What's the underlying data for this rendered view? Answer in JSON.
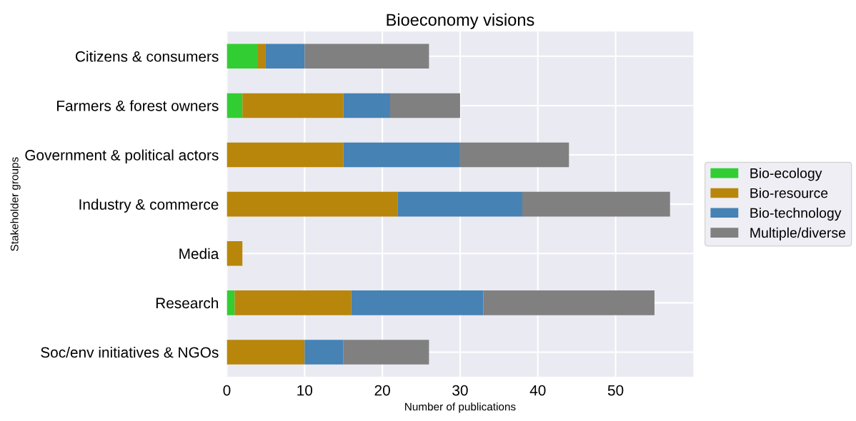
{
  "chart_data": {
    "type": "bar",
    "orientation": "horizontal",
    "stacked": true,
    "title": "Bioeconomy visions",
    "xlabel": "Number of publications",
    "ylabel": "Stakeholder groups",
    "categories": [
      "Citizens & consumers",
      "Farmers & forest owners",
      "Government & political actors",
      "Industry & commerce",
      "Media",
      "Research",
      "Soc/env initiatives & NGOs"
    ],
    "series": [
      {
        "name": "Bio-ecology",
        "color": "#32cd32",
        "values": [
          4,
          2,
          0,
          0,
          0,
          1,
          0
        ]
      },
      {
        "name": "Bio-resource",
        "color": "#b8860b",
        "values": [
          1,
          13,
          15,
          22,
          2,
          15,
          10
        ]
      },
      {
        "name": "Bio-technology",
        "color": "#4682b4",
        "values": [
          5,
          6,
          15,
          16,
          0,
          17,
          5
        ]
      },
      {
        "name": "Multiple/diverse",
        "color": "#808080",
        "values": [
          16,
          9,
          14,
          19,
          0,
          22,
          11
        ]
      }
    ],
    "xlim": [
      0,
      60
    ],
    "xticks": [
      0,
      10,
      20,
      30,
      40,
      50
    ],
    "grid": true,
    "legend": "right"
  }
}
